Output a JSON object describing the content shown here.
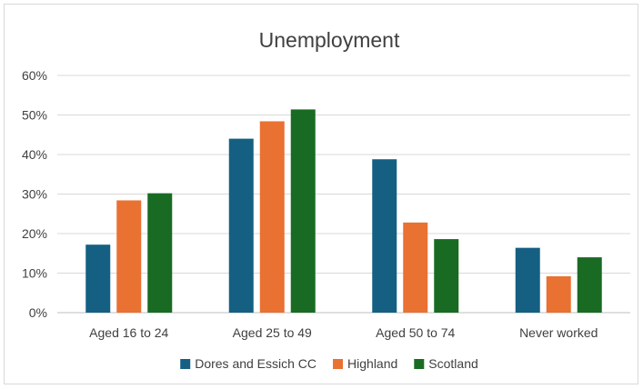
{
  "chart_data": {
    "type": "bar",
    "title": "Unemployment",
    "categories": [
      "Aged 16 to 24",
      "Aged 25 to 49",
      "Aged 50 to 74",
      "Never worked"
    ],
    "series": [
      {
        "name": "Dores and Essich CC",
        "color": "#156082",
        "values": [
          17.2,
          44.0,
          38.8,
          16.4
        ]
      },
      {
        "name": "Highland",
        "color": "#E97132",
        "values": [
          28.4,
          48.4,
          22.8,
          9.2
        ]
      },
      {
        "name": "Scotland",
        "color": "#196B24",
        "values": [
          30.2,
          51.4,
          18.6,
          14.0
        ]
      }
    ],
    "y_ticks": [
      "0%",
      "10%",
      "20%",
      "30%",
      "40%",
      "50%",
      "60%"
    ],
    "ylim": [
      0,
      60
    ],
    "grid": true,
    "legend_position": "bottom"
  }
}
